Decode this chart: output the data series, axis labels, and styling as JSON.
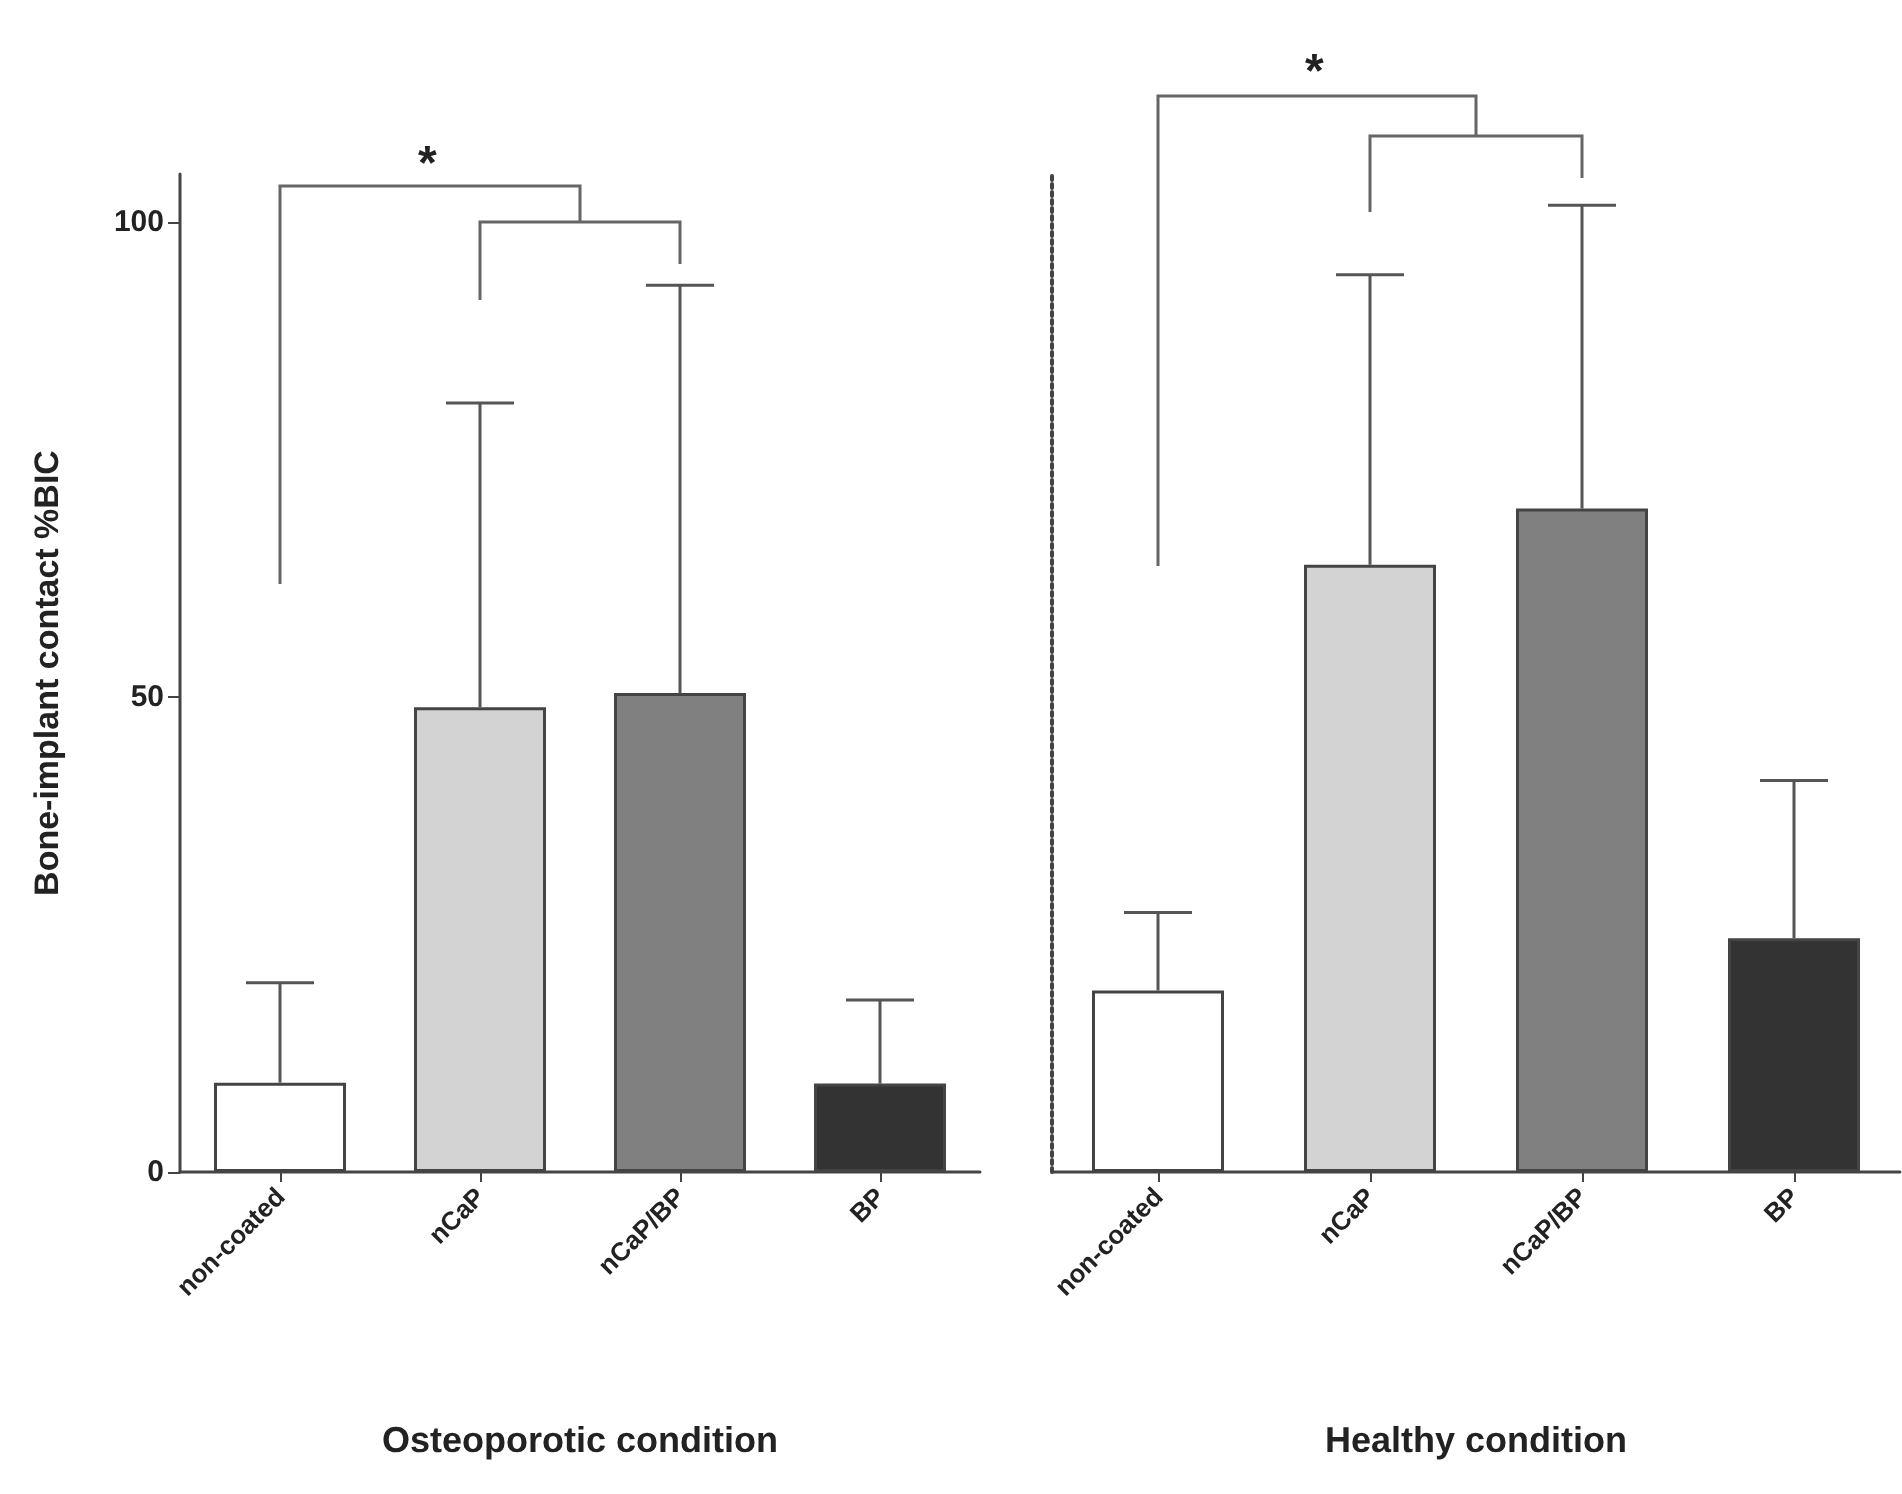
{
  "chart_data": [
    {
      "type": "bar",
      "xlabel": "Osteoporotic condition",
      "ylabel": "Bone-implant contact %BIC",
      "categories": [
        "non-coated",
        "nCaP",
        "nCaP/BP",
        "BP"
      ],
      "values": [
        9.4,
        48.9,
        50.4,
        9.3
      ],
      "errors": [
        [
          9.4,
          19.9
        ],
        [
          48.9,
          80.9
        ],
        [
          50.4,
          93.3
        ],
        [
          9.3,
          18.1
        ]
      ],
      "colors": [
        "#ffffff",
        "#d3d3d3",
        "#808080",
        "#333333"
      ],
      "ylim": [
        0,
        105
      ],
      "yticks": [
        0,
        50,
        100
      ],
      "grid": false,
      "annotations": [
        "*"
      ]
    },
    {
      "type": "bar",
      "xlabel": "Healthy condition",
      "categories": [
        "non-coated",
        "nCaP",
        "nCaP/BP",
        "BP"
      ],
      "values": [
        19.1,
        63.9,
        69.8,
        24.6
      ],
      "errors": [
        [
          19.1,
          27.3
        ],
        [
          63.9,
          94.4
        ],
        [
          69.8,
          101.7
        ],
        [
          24.6,
          41.2
        ]
      ],
      "colors": [
        "#ffffff",
        "#d3d3d3",
        "#808080",
        "#333333"
      ],
      "ylim": [
        0,
        105
      ],
      "yticks": [
        0,
        50,
        100
      ],
      "grid": false,
      "tick_labels": "x",
      "annotations": [
        "*"
      ]
    }
  ]
}
